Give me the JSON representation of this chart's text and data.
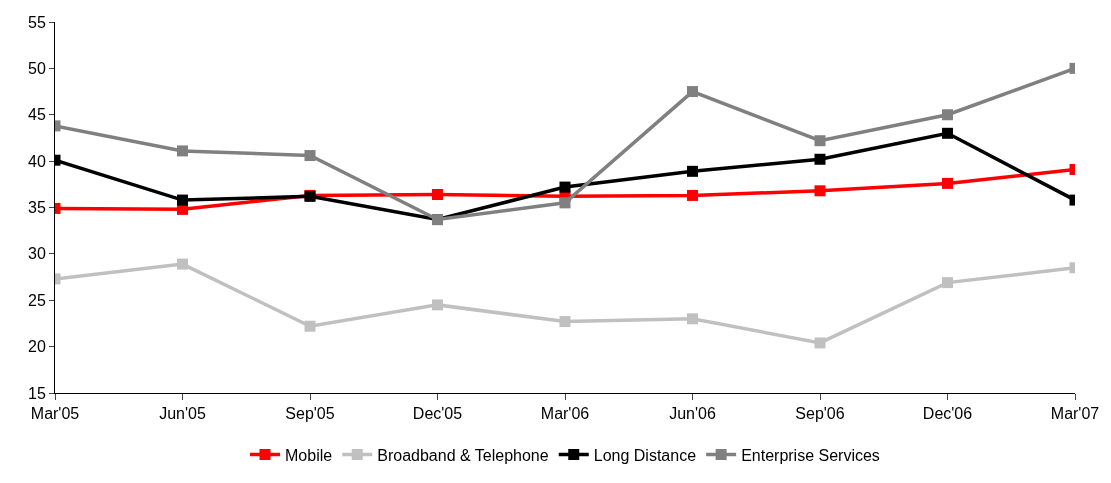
{
  "chart_data": {
    "type": "line",
    "categories": [
      "Mar'05",
      "Jun'05",
      "Sep'05",
      "Dec'05",
      "Mar'06",
      "Jun'06",
      "Sep'06",
      "Dec'06",
      "Mar'07"
    ],
    "series": [
      {
        "name": "Mobile",
        "color": "#ff0000",
        "values": [
          34.9,
          34.8,
          36.3,
          36.4,
          36.2,
          36.3,
          36.8,
          37.6,
          39.1
        ]
      },
      {
        "name": "Broadband & Telephone",
        "color": "#c0c0c0",
        "values": [
          27.3,
          28.9,
          22.2,
          24.5,
          22.7,
          23.0,
          20.4,
          26.9,
          28.5
        ]
      },
      {
        "name": "Long Distance",
        "color": "#000000",
        "values": [
          40.1,
          35.8,
          36.2,
          33.7,
          37.2,
          38.9,
          40.2,
          43.0,
          35.8
        ]
      },
      {
        "name": "Enterprise Services",
        "color": "#808080",
        "values": [
          43.8,
          41.1,
          40.6,
          33.7,
          35.5,
          47.5,
          42.2,
          45.0,
          50.0
        ]
      }
    ],
    "ylim": [
      15,
      55
    ],
    "yticks": [
      15,
      20,
      25,
      30,
      35,
      40,
      45,
      50,
      55
    ],
    "grid": false,
    "legend": "bottom",
    "marker": "square",
    "line_style": "solid"
  }
}
